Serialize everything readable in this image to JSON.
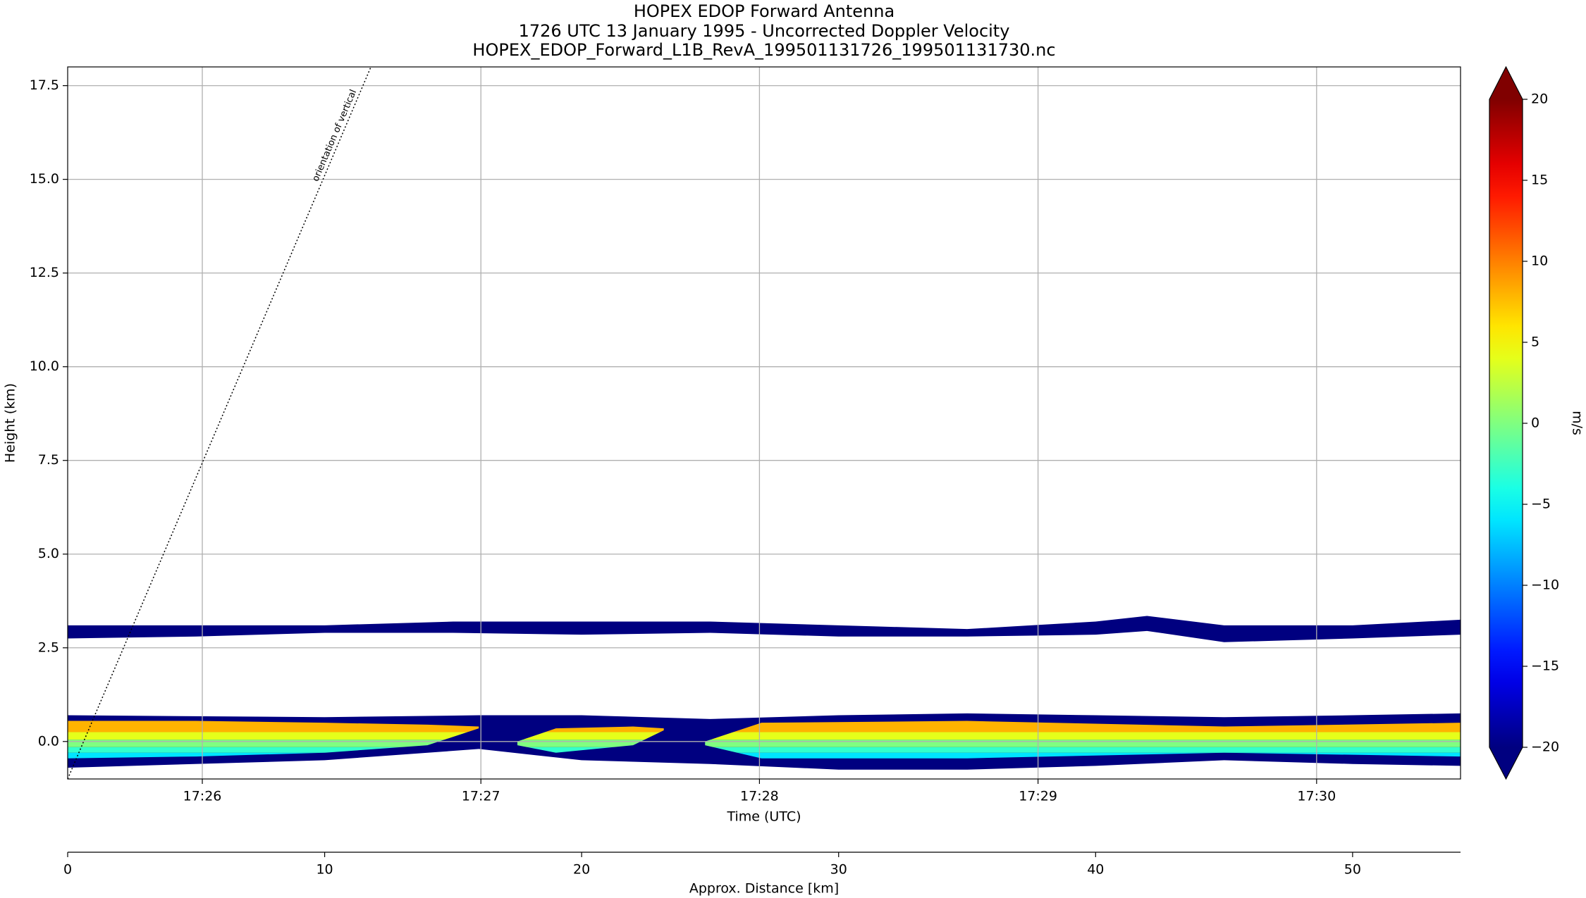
{
  "chart_data": {
    "type": "radar_section",
    "title": [
      "HOPEX EDOP Forward Antenna",
      "1726 UTC 13 January 1995 - Uncorrected Doppler Velocity",
      "HOPEX_EDOP_Forward_L1B_RevA_199501131726_199501131730.nc"
    ],
    "xlabel": "Time (UTC)",
    "ylabel": "Height (km)",
    "xlim": [
      "17:25:31",
      "17:30:31"
    ],
    "xticks": [
      "17:26",
      "17:27",
      "17:28",
      "17:29",
      "17:30"
    ],
    "ylim": [
      -1,
      18
    ],
    "yticks": [
      {
        "value": 0,
        "label": "0.0"
      },
      {
        "value": 2.5,
        "label": "2.5"
      },
      {
        "value": 5,
        "label": "5.0"
      },
      {
        "value": 7.5,
        "label": "7.5"
      },
      {
        "value": 10,
        "label": "10.0"
      },
      {
        "value": 12.5,
        "label": "12.5"
      },
      {
        "value": 15,
        "label": "15.0"
      },
      {
        "value": 17.5,
        "label": "17.5"
      }
    ],
    "grid": true,
    "distance_axis": {
      "label": "Approx. Distance [km]",
      "xlim": [
        0,
        54.2
      ],
      "xticks": [
        0,
        10,
        20,
        30,
        40,
        50
      ]
    },
    "colorbar": {
      "label": "m/s",
      "colormap": "jet",
      "lim": [
        -20,
        20
      ],
      "extend": "both",
      "ticks": [
        {
          "value": -20,
          "label": "−20"
        },
        {
          "value": -15,
          "label": "−15"
        },
        {
          "value": -10,
          "label": "−10"
        },
        {
          "value": -5,
          "label": "−5"
        },
        0,
        5,
        10,
        15,
        20
      ]
    },
    "layers": [
      {
        "velocity": -20,
        "x_km": [
          0,
          5,
          10,
          15,
          20,
          25,
          30,
          35,
          40,
          42,
          45,
          50,
          54.2
        ],
        "top": [
          3.1,
          3.1,
          3.1,
          3.2,
          3.2,
          3.2,
          3.1,
          3.0,
          3.2,
          3.35,
          3.1,
          3.1,
          3.25
        ],
        "bottom": [
          2.75,
          2.8,
          2.9,
          2.9,
          2.85,
          2.9,
          2.8,
          2.8,
          2.85,
          2.95,
          2.65,
          2.75,
          2.85
        ]
      },
      {
        "velocity": -20,
        "x_km": [
          0,
          10,
          16,
          20,
          25,
          30,
          35,
          40,
          45,
          50,
          54.2
        ],
        "top": [
          0.7,
          0.65,
          0.7,
          0.7,
          0.6,
          0.7,
          0.75,
          0.7,
          0.65,
          0.7,
          0.75
        ],
        "bottom": [
          -0.7,
          -0.5,
          -0.2,
          -0.5,
          -0.6,
          -0.75,
          -0.75,
          -0.65,
          -0.5,
          -0.6,
          -0.65
        ]
      }
    ],
    "core": {
      "segments": [
        {
          "x_km": [
            0,
            5,
            10,
            14,
            16
          ],
          "top": [
            0.55,
            0.55,
            0.5,
            0.45,
            0.4
          ],
          "bottom": [
            -0.45,
            -0.4,
            -0.3,
            -0.1,
            0.35
          ]
        },
        {
          "x_km": [
            17.5,
            19,
            22,
            23.2
          ],
          "top": [
            0.0,
            0.35,
            0.4,
            0.35
          ],
          "bottom": [
            -0.1,
            -0.3,
            -0.1,
            0.3
          ]
        },
        {
          "x_km": [
            24.8,
            27,
            35,
            45,
            54.2
          ],
          "top": [
            0.0,
            0.5,
            0.55,
            0.4,
            0.5
          ],
          "bottom": [
            -0.1,
            -0.45,
            -0.45,
            -0.3,
            -0.4
          ]
        }
      ],
      "heights": [
        -0.5,
        -0.3,
        -0.15,
        0.05,
        0.25,
        0.6
      ],
      "velocities": [
        -6,
        -3,
        0,
        4,
        8
      ]
    },
    "annotation": {
      "text": "orientation of vertical",
      "x_km": [
        0,
        11.8
      ],
      "y": [
        -1,
        18
      ]
    }
  }
}
